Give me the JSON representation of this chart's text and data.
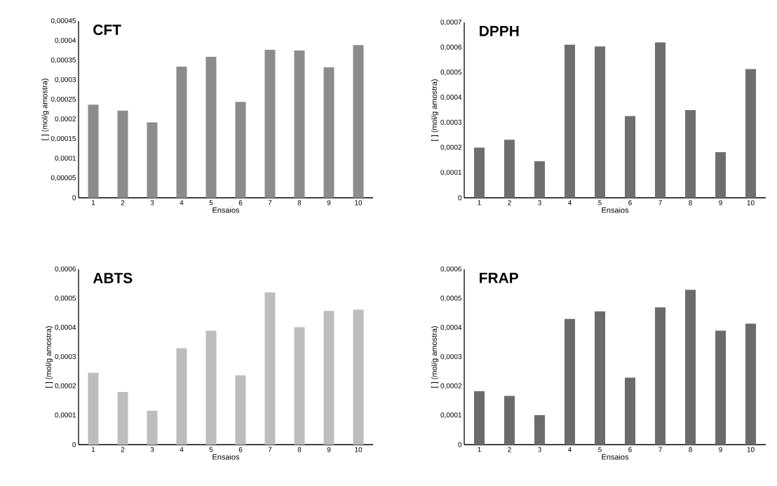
{
  "chart_data": [
    {
      "type": "bar",
      "title": "CFT",
      "xlabel": "Ensaios",
      "ylabel": "[ ] (mol/g amostra)",
      "categories": [
        "1",
        "2",
        "3",
        "4",
        "5",
        "6",
        "7",
        "8",
        "9",
        "10"
      ],
      "color": "#8c8c8c",
      "values": [
        0.000237,
        0.000222,
        0.000192,
        0.000334,
        0.000359,
        0.000244,
        0.000377,
        0.000375,
        0.000332,
        0.000389
      ],
      "ylim": [
        0,
        0.00045
      ],
      "yticks": [
        0,
        {
          "value": 5e-05,
          "label": "0,00005"
        },
        {
          "value": 0.0001,
          "label": "0,0001"
        },
        {
          "value": 0.00015,
          "label": "0,00015"
        },
        {
          "value": 0.0002,
          "label": "0,0002"
        },
        {
          "value": 0.00025,
          "label": "0,00025"
        },
        {
          "value": 0.0003,
          "label": "0,0003"
        },
        {
          "value": 0.00035,
          "label": "0,00035"
        },
        {
          "value": 0.0004,
          "label": "0,0004"
        },
        {
          "value": 0.00045,
          "label": "0,00045"
        }
      ]
    },
    {
      "type": "bar",
      "title": "DPPH",
      "xlabel": "Ensaios",
      "ylabel": "[ ] (mol/g amostra)",
      "categories": [
        "1",
        "2",
        "3",
        "4",
        "5",
        "6",
        "7",
        "8",
        "9",
        "10"
      ],
      "color": "#6e6e6e",
      "values": [
        0.0002,
        0.000232,
        0.000146,
        0.000611,
        0.000604,
        0.000326,
        0.00062,
        0.00035,
        0.000182,
        0.000514
      ],
      "ylim": [
        0,
        0.0007
      ],
      "yticks": [
        0,
        {
          "value": 0.0001,
          "label": "0,0001"
        },
        {
          "value": 0.0002,
          "label": "0,0002"
        },
        {
          "value": 0.0003,
          "label": "0,0003"
        },
        {
          "value": 0.0004,
          "label": "0,0004"
        },
        {
          "value": 0.0005,
          "label": "0,0005"
        },
        {
          "value": 0.0006,
          "label": "0,0006"
        },
        {
          "value": 0.0007,
          "label": "0,0007"
        }
      ]
    },
    {
      "type": "bar",
      "title": "ABTS",
      "xlabel": "Ensaios",
      "ylabel": "[ ] (mol/g amostra)",
      "categories": [
        "1",
        "2",
        "3",
        "4",
        "5",
        "6",
        "7",
        "8",
        "9",
        "10"
      ],
      "color": "#bdbdbd",
      "values": [
        0.000246,
        0.00018,
        0.000116,
        0.00033,
        0.00039,
        0.000237,
        0.000521,
        0.000402,
        0.000458,
        0.000462
      ],
      "ylim": [
        0,
        0.0006
      ],
      "yticks": [
        0,
        {
          "value": 0.0001,
          "label": "0,0001"
        },
        {
          "value": 0.0002,
          "label": "0,0002"
        },
        {
          "value": 0.0003,
          "label": "0,0003"
        },
        {
          "value": 0.0004,
          "label": "0,0004"
        },
        {
          "value": 0.0005,
          "label": "0,0005"
        },
        {
          "value": 0.0006,
          "label": "0,0006"
        }
      ]
    },
    {
      "type": "bar",
      "title": "FRAP",
      "xlabel": "Ensaios",
      "ylabel": "[ ] (mol/g amostra)",
      "categories": [
        "1",
        "2",
        "3",
        "4",
        "5",
        "6",
        "7",
        "8",
        "9",
        "10"
      ],
      "color": "#6b6b6b",
      "values": [
        0.000183,
        0.000167,
        0.000101,
        0.00043,
        0.000456,
        0.000229,
        0.00047,
        0.00053,
        0.00039,
        0.000414
      ],
      "ylim": [
        0,
        0.0006
      ],
      "yticks": [
        0,
        {
          "value": 0.0001,
          "label": "0,0001"
        },
        {
          "value": 0.0002,
          "label": "0,0002"
        },
        {
          "value": 0.0003,
          "label": "0,0003"
        },
        {
          "value": 0.0004,
          "label": "0,0004"
        },
        {
          "value": 0.0005,
          "label": "0,0005"
        },
        {
          "value": 0.0006,
          "label": "0,0006"
        }
      ]
    }
  ]
}
